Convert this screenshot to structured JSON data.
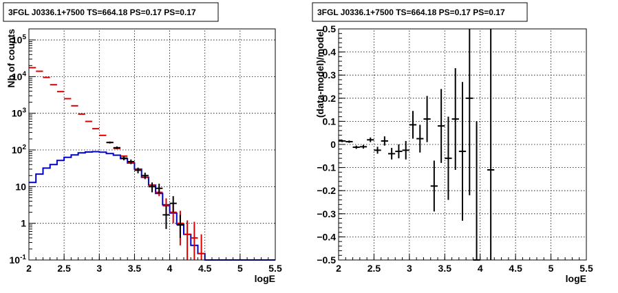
{
  "chart_data": [
    {
      "type": "histogram",
      "title": "3FGL J0336.1+7500 TS=664.18 PS=0.17 PS=0.17",
      "xlabel": "logE",
      "ylabel": "Nb of counts",
      "xlim": [
        2,
        5.5
      ],
      "ylim": [
        0.1,
        200000
      ],
      "yscale": "log",
      "grid": true,
      "x_ticks": [
        "2",
        "2.5",
        "3",
        "3.5",
        "4",
        "4.5",
        "5",
        "5.5"
      ],
      "y_ticks": [
        "10^{-1}",
        "1",
        "10",
        "10^{2}",
        "10^{3}",
        "10^{4}",
        "10^{5}"
      ],
      "bin_edges": [
        2.0,
        2.1,
        2.2,
        2.3,
        2.4,
        2.5,
        2.6,
        2.7,
        2.8,
        2.9,
        3.0,
        3.1,
        3.2,
        3.3,
        3.4,
        3.5,
        3.6,
        3.7,
        3.8,
        3.9,
        4.0,
        4.1,
        4.2,
        4.3,
        4.4,
        4.5,
        4.6,
        4.7,
        4.8,
        4.9,
        5.0,
        5.1,
        5.2,
        5.3,
        5.4,
        5.5
      ],
      "series": [
        {
          "color": "#0000cc",
          "style": "step",
          "values": [
            13,
            22,
            32,
            40,
            52,
            63,
            73,
            83,
            88,
            90,
            87,
            80,
            72,
            58,
            44,
            30,
            18,
            11,
            6.5,
            3.2,
            1.9,
            0.95,
            0.5,
            0.25,
            0.15,
            0.1,
            0.1,
            0.1,
            0.1,
            0.1,
            0.1,
            0.1,
            0.1,
            0.1,
            0.1
          ]
        },
        {
          "color": "#dd0000",
          "style": "errorbar",
          "x": [
            2.05,
            2.15,
            2.25,
            2.35,
            2.45,
            2.55,
            2.65,
            2.75,
            2.85,
            2.95,
            3.05,
            3.15,
            3.25,
            3.35,
            3.45,
            3.55,
            3.65,
            3.75,
            3.85,
            3.95,
            4.05,
            4.15,
            4.25,
            4.35,
            4.45
          ],
          "y": [
            17500,
            14000,
            9500,
            6000,
            3900,
            2500,
            1600,
            950,
            600,
            380,
            250,
            160,
            110,
            68,
            45,
            30,
            18,
            11,
            7,
            3,
            2,
            1,
            0.5,
            0.4,
            0.15
          ],
          "yerr_low": [
            0,
            0,
            0,
            0,
            0,
            0,
            0,
            0,
            0,
            0,
            0,
            0,
            0,
            0,
            0,
            0,
            0,
            0,
            1.5,
            1.2,
            1.0,
            0.75,
            0.4,
            0.3,
            0.05
          ],
          "yerr_high": [
            0,
            0,
            0,
            0,
            0,
            0,
            0,
            0,
            0,
            0,
            0,
            0,
            0,
            0,
            0,
            0,
            0,
            0,
            2.0,
            1.8,
            1.3,
            1.2,
            0.7,
            0.7,
            0.35
          ]
        },
        {
          "color": "#000000",
          "style": "errorbar",
          "x": [
            3.15,
            3.25,
            3.35,
            3.45,
            3.55,
            3.65,
            3.75,
            3.85,
            3.95,
            4.05,
            4.15
          ],
          "y": [
            160,
            115,
            60,
            48,
            28,
            20,
            10,
            9,
            1.7,
            3.5,
            0.9
          ],
          "yerr_low": [
            10,
            10,
            8,
            7,
            5,
            4,
            3,
            2.5,
            1.0,
            1.5,
            0.5
          ],
          "yerr_high": [
            10,
            10,
            8,
            7,
            5,
            4,
            3,
            3,
            1.3,
            2.0,
            0.8
          ]
        }
      ]
    },
    {
      "type": "scatter",
      "title": "3FGL J0336.1+7500 TS=664.18 PS=0.17 PS=0.17",
      "xlabel": "logE",
      "ylabel": "(data-model)/model",
      "xlim": [
        2,
        5.5
      ],
      "ylim": [
        -0.5,
        0.5
      ],
      "grid": true,
      "x_ticks": [
        "2",
        "2.5",
        "3",
        "3.5",
        "4",
        "4.5",
        "5",
        "5.5"
      ],
      "y_ticks": [
        "−0.5",
        "−0.4",
        "−0.3",
        "−0.2",
        "−0.1",
        "0",
        "0.1",
        "0.2",
        "0.3",
        "0.4",
        "0.5"
      ],
      "series": [
        {
          "color": "#000000",
          "style": "errorbar",
          "x": [
            2.05,
            2.15,
            2.25,
            2.35,
            2.45,
            2.55,
            2.65,
            2.75,
            2.85,
            2.95,
            3.05,
            3.15,
            3.25,
            3.35,
            3.45,
            3.55,
            3.65,
            3.75,
            3.85,
            3.95,
            4.15
          ],
          "y": [
            0.015,
            0.012,
            -0.012,
            -0.01,
            0.02,
            -0.025,
            0.015,
            -0.04,
            -0.03,
            -0.025,
            0.085,
            0.025,
            0.11,
            -0.18,
            0.08,
            -0.06,
            0.11,
            -0.03,
            0.2,
            -0.5,
            -0.11
          ],
          "yerr": [
            0.005,
            0.005,
            0.007,
            0.008,
            0.01,
            0.015,
            0.02,
            0.025,
            0.03,
            0.04,
            0.06,
            0.06,
            0.1,
            0.11,
            0.16,
            0.18,
            0.22,
            0.3,
            0.42,
            0.6,
            0.65
          ]
        }
      ]
    }
  ]
}
